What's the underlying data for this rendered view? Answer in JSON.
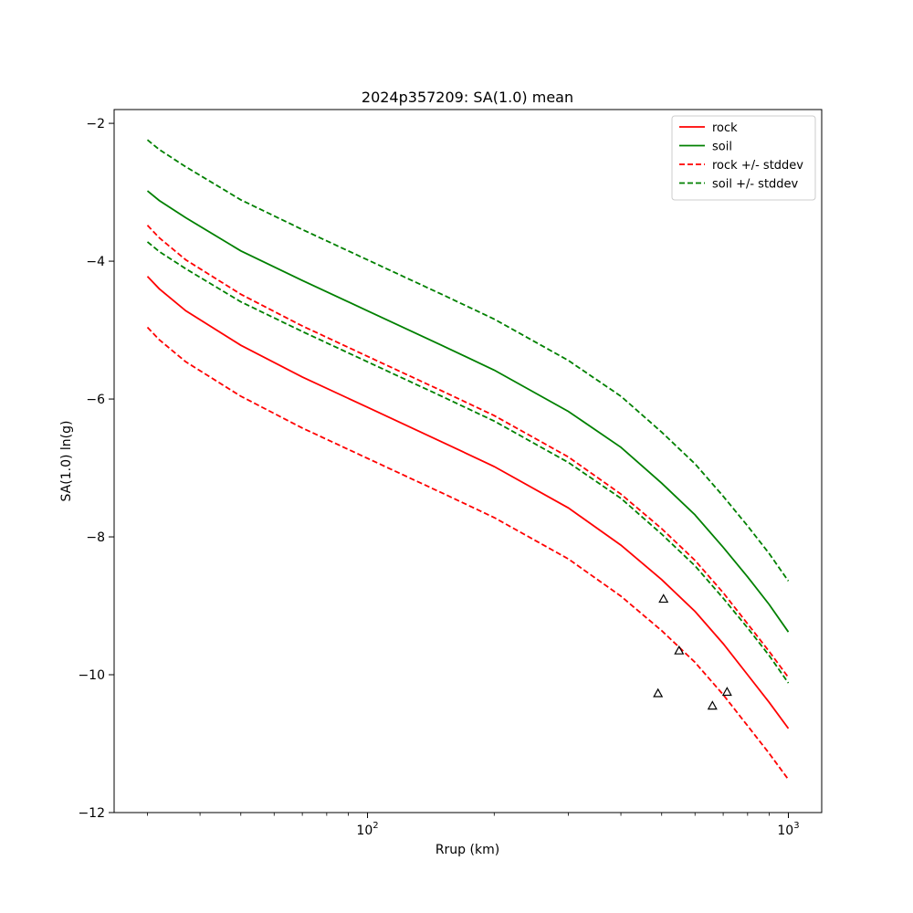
{
  "chart_data": {
    "type": "line",
    "title": "2024p357209: SA(1.0) mean",
    "xlabel": "Rrup (km)",
    "ylabel": "SA(1.0) ln(g)",
    "xscale": "log",
    "xlim": [
      25,
      1200
    ],
    "ylim": [
      -12,
      -1.8
    ],
    "x_ticks": [
      {
        "value": 100,
        "label": "10",
        "exp": "2"
      },
      {
        "value": 1000,
        "label": "10",
        "exp": "3"
      }
    ],
    "y_ticks": [
      {
        "value": -2,
        "label": "−2"
      },
      {
        "value": -4,
        "label": "−4"
      },
      {
        "value": -6,
        "label": "−6"
      },
      {
        "value": -8,
        "label": "−8"
      },
      {
        "value": -10,
        "label": "−10"
      },
      {
        "value": -12,
        "label": "−12"
      }
    ],
    "grid": false,
    "legend_position": "upper right",
    "x": [
      30,
      32,
      37,
      50,
      70,
      100,
      150,
      200,
      300,
      400,
      500,
      600,
      700,
      800,
      900,
      1000
    ],
    "series": [
      {
        "name": "rock",
        "color": "#ff0000",
        "style": "solid",
        "values": [
          -4.22,
          -4.4,
          -4.72,
          -5.22,
          -5.68,
          -6.12,
          -6.62,
          -6.98,
          -7.58,
          -8.12,
          -8.62,
          -9.08,
          -9.55,
          -10.0,
          -10.4,
          -10.78
        ]
      },
      {
        "name": "soil",
        "color": "#008000",
        "style": "solid",
        "values": [
          -2.98,
          -3.12,
          -3.37,
          -3.85,
          -4.28,
          -4.72,
          -5.22,
          -5.58,
          -6.18,
          -6.7,
          -7.22,
          -7.68,
          -8.15,
          -8.58,
          -8.98,
          -9.38
        ]
      },
      {
        "name": "rock +/- stddev",
        "color": "#ff0000",
        "style": "dashed",
        "values": [
          -3.48,
          -3.66,
          -3.98,
          -4.48,
          -4.94,
          -5.38,
          -5.88,
          -6.24,
          -6.84,
          -7.38,
          -7.88,
          -8.34,
          -8.81,
          -9.26,
          -9.66,
          -10.04
        ]
      },
      {
        "name": "",
        "color": "#ff0000",
        "style": "dashed",
        "values": [
          -4.96,
          -5.14,
          -5.46,
          -5.96,
          -6.42,
          -6.86,
          -7.36,
          -7.72,
          -8.32,
          -8.86,
          -9.36,
          -9.82,
          -10.29,
          -10.74,
          -11.14,
          -11.52
        ]
      },
      {
        "name": "soil +/- stddev",
        "color": "#008000",
        "style": "dashed",
        "values": [
          -2.24,
          -2.38,
          -2.63,
          -3.11,
          -3.54,
          -3.98,
          -4.48,
          -4.84,
          -5.44,
          -5.96,
          -6.48,
          -6.94,
          -7.41,
          -7.84,
          -8.24,
          -8.64
        ]
      },
      {
        "name": "",
        "color": "#008000",
        "style": "dashed",
        "values": [
          -3.72,
          -3.86,
          -4.11,
          -4.59,
          -5.02,
          -5.46,
          -5.96,
          -6.32,
          -6.92,
          -7.44,
          -7.96,
          -8.42,
          -8.89,
          -9.32,
          -9.72,
          -10.12
        ]
      }
    ],
    "observations": {
      "marker": "triangle",
      "x": [
        490,
        505,
        550,
        660,
        715
      ],
      "y": [
        -10.27,
        -8.9,
        -9.65,
        -10.45,
        -10.25
      ]
    }
  }
}
